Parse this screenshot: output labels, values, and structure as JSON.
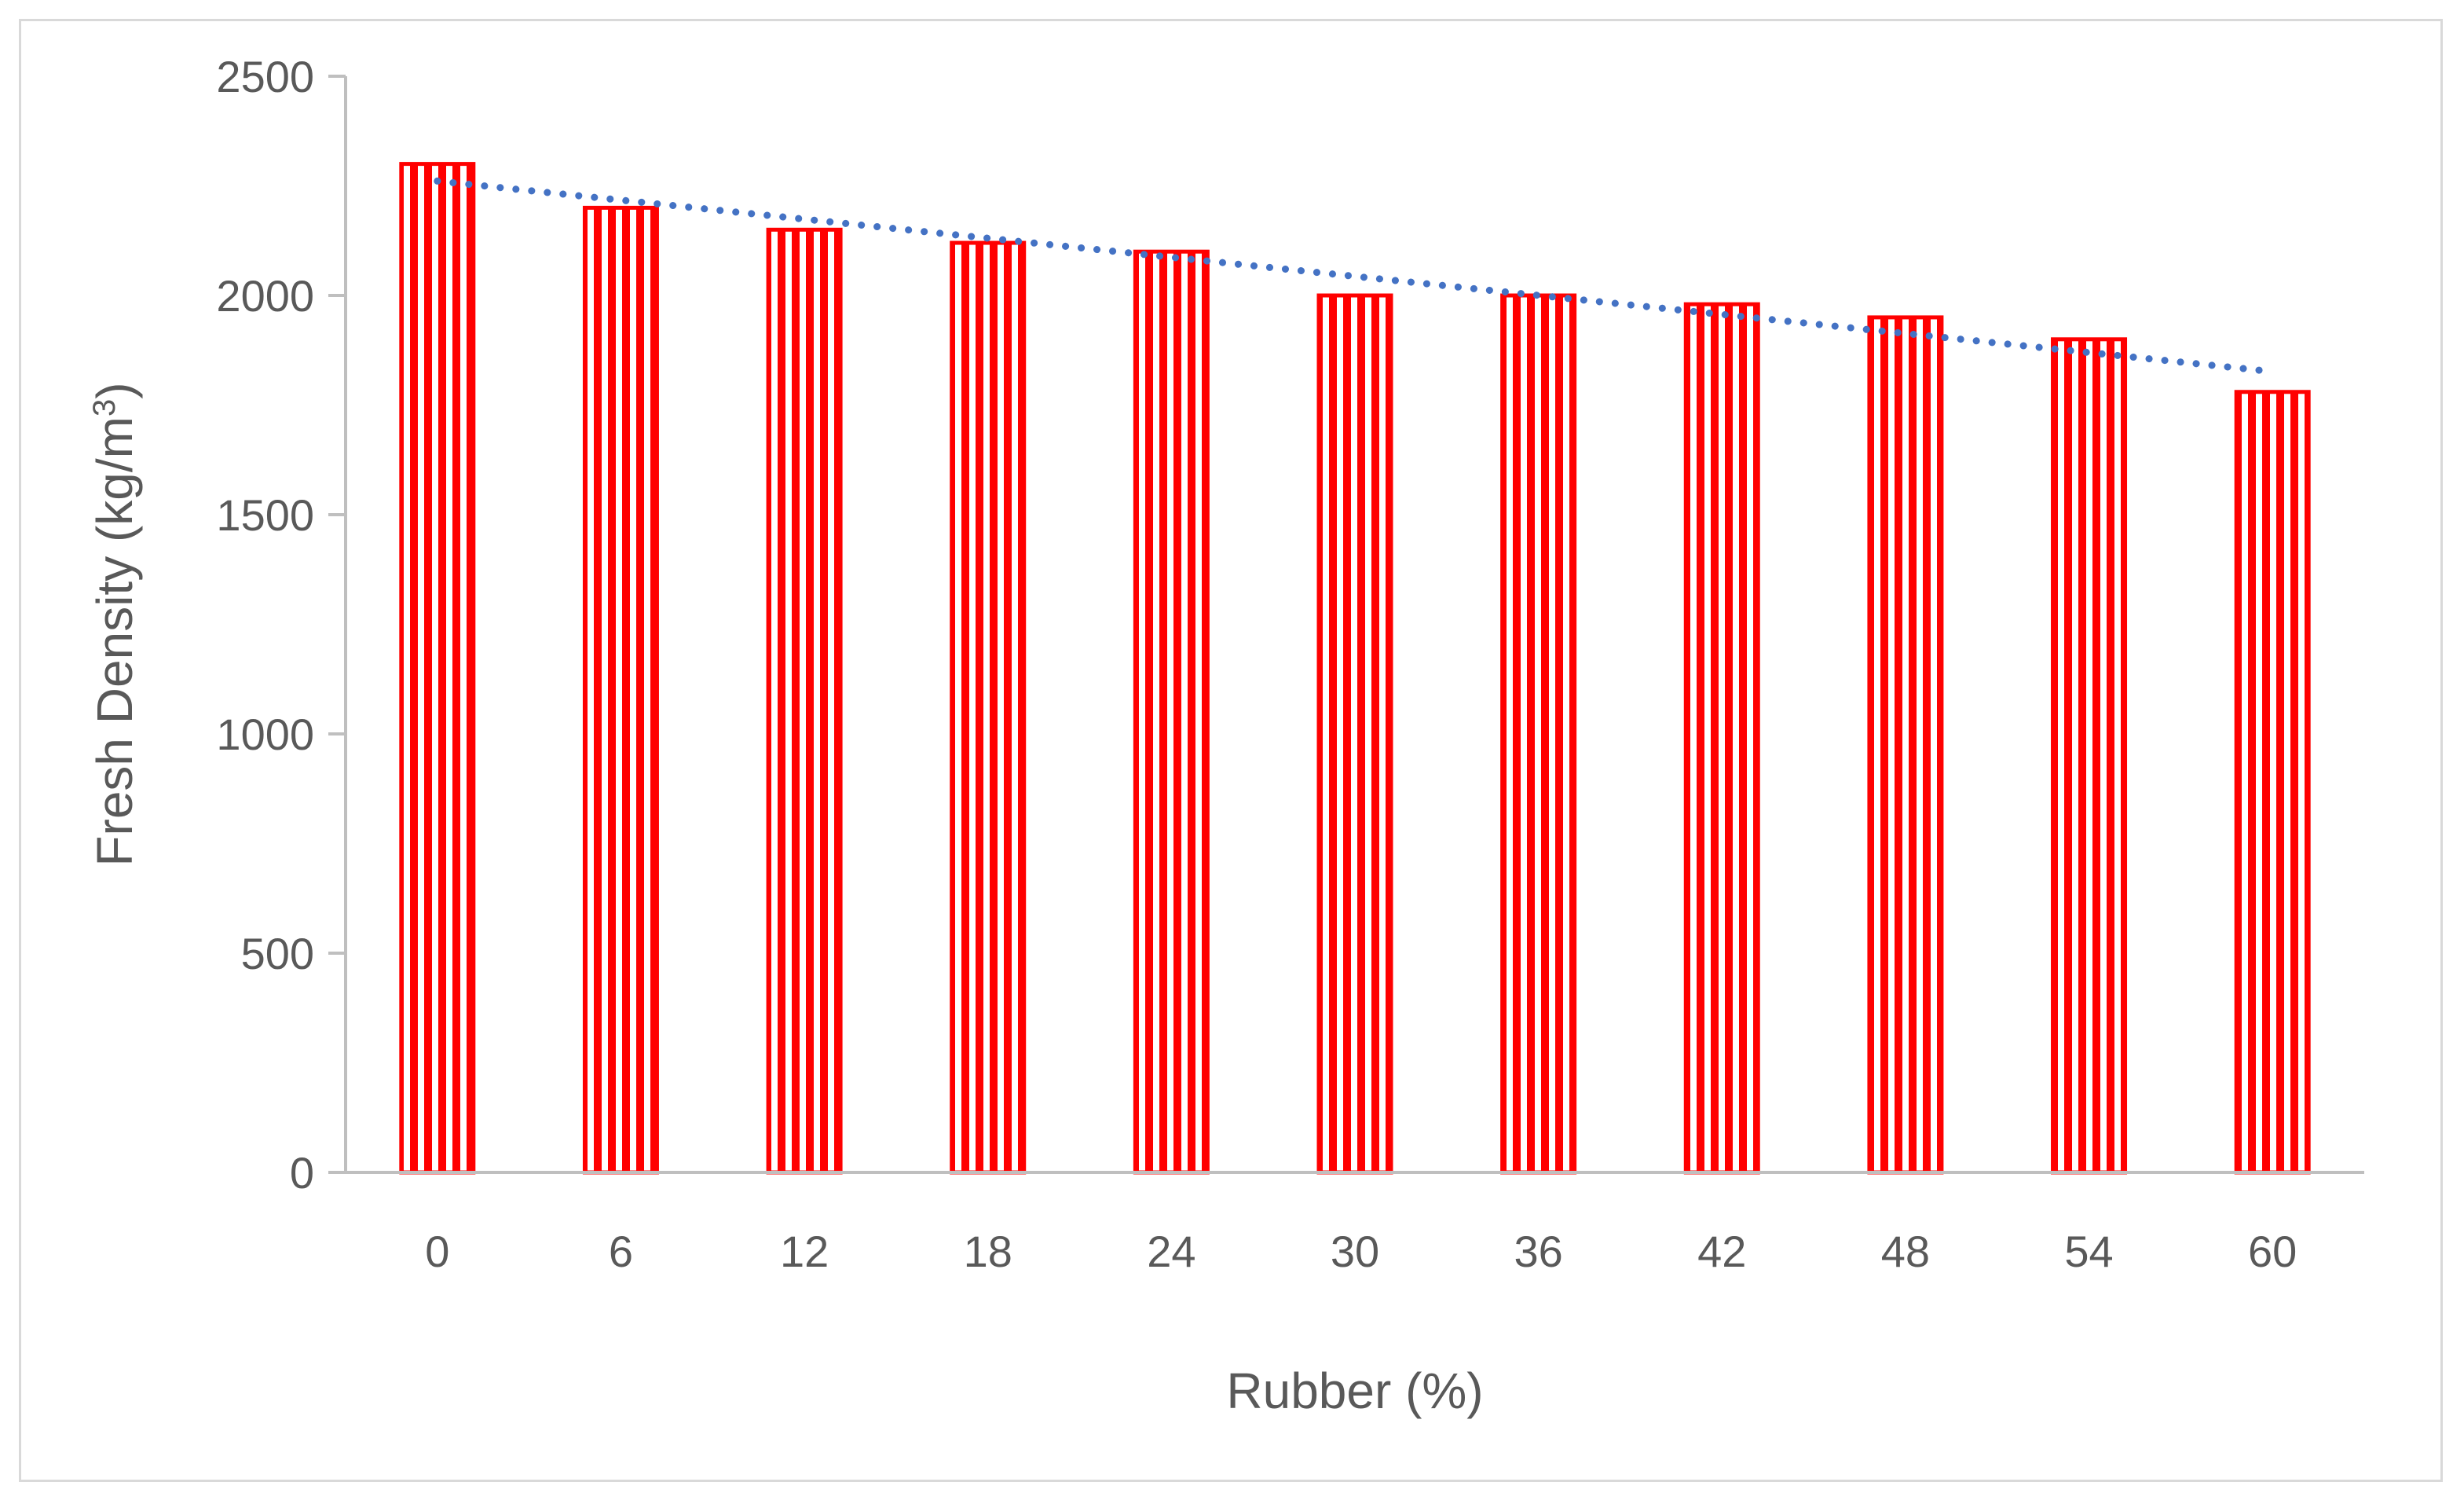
{
  "chart_data": {
    "type": "bar",
    "title": "",
    "xlabel": "Rubber (%)",
    "ylabel_main": "Fresh Density (kg/m",
    "ylabel_sup": "3",
    "ylabel_end": ")",
    "categories": [
      "0",
      "6",
      "12",
      "18",
      "24",
      "30",
      "36",
      "42",
      "48",
      "54",
      "60"
    ],
    "series": [
      {
        "values": [
          2300,
          2200,
          2150,
          2120,
          2100,
          2000,
          2000,
          1980,
          1950,
          1900,
          1780
        ],
        "color": "#ff0000",
        "pattern": "vertical-stripes"
      }
    ],
    "trendline": {
      "type": "linear",
      "style": "dotted",
      "color": "#4472c4"
    },
    "yticks": [
      "0",
      "500",
      "1000",
      "1500",
      "2000",
      "2500"
    ],
    "ylim": [
      0,
      2500
    ],
    "grid": false,
    "legend": "none",
    "axis_color": "#bfbfbf",
    "text_color": "#595959"
  }
}
